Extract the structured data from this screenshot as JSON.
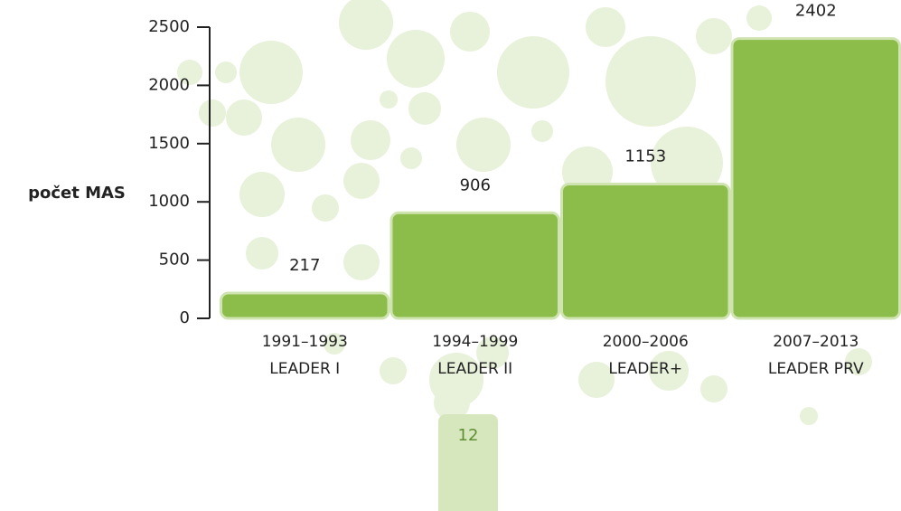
{
  "chart_data": {
    "type": "bar",
    "y_label": "počet MAS",
    "categories": [
      [
        "1991–1993",
        "LEADER I"
      ],
      [
        "1994–1999",
        "LEADER II"
      ],
      [
        "2000–2006",
        "LEADER+"
      ],
      [
        "2007–2013",
        "LEADER PRV"
      ]
    ],
    "values": [
      217,
      906,
      1153,
      2402
    ],
    "color": "#8cbd4a",
    "ylim": [
      0,
      2500
    ],
    "yticks": [
      0,
      500,
      1000,
      1500,
      2000,
      2500
    ],
    "grid": false
  },
  "page_number": "12"
}
